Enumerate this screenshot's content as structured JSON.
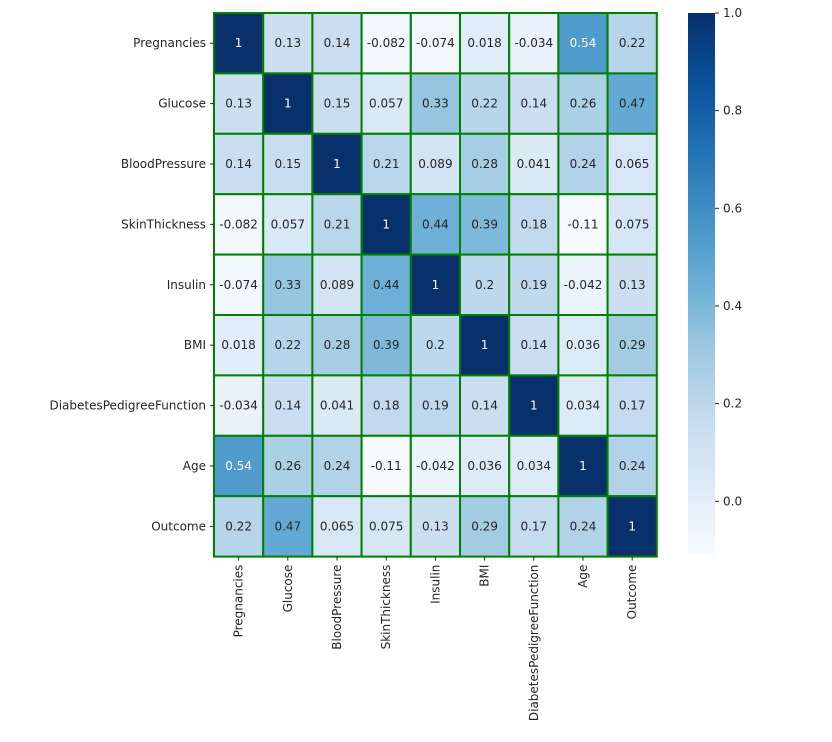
{
  "chart_data": {
    "type": "heatmap",
    "title": "",
    "xlabel": "",
    "ylabel": "",
    "colormap": "Blues",
    "cell_border_color": "#008000",
    "row_labels": [
      "Pregnancies",
      "Glucose",
      "BloodPressure",
      "SkinThickness",
      "Insulin",
      "BMI",
      "DiabetesPedigreeFunction",
      "Age",
      "Outcome"
    ],
    "col_labels": [
      "Pregnancies",
      "Glucose",
      "BloodPressure",
      "SkinThickness",
      "Insulin",
      "BMI",
      "DiabetesPedigreeFunction",
      "Age",
      "Outcome"
    ],
    "values": [
      [
        1,
        0.13,
        0.14,
        -0.082,
        -0.074,
        0.018,
        -0.034,
        0.54,
        0.22
      ],
      [
        0.13,
        1,
        0.15,
        0.057,
        0.33,
        0.22,
        0.14,
        0.26,
        0.47
      ],
      [
        0.14,
        0.15,
        1,
        0.21,
        0.089,
        0.28,
        0.041,
        0.24,
        0.065
      ],
      [
        -0.082,
        0.057,
        0.21,
        1,
        0.44,
        0.39,
        0.18,
        -0.11,
        0.075
      ],
      [
        -0.074,
        0.33,
        0.089,
        0.44,
        1,
        0.2,
        0.19,
        -0.042,
        0.13
      ],
      [
        0.018,
        0.22,
        0.28,
        0.39,
        0.2,
        1,
        0.14,
        0.036,
        0.29
      ],
      [
        -0.034,
        0.14,
        0.041,
        0.18,
        0.19,
        0.14,
        1,
        0.034,
        0.17
      ],
      [
        0.54,
        0.26,
        0.24,
        -0.11,
        -0.042,
        0.036,
        0.034,
        1,
        0.24
      ],
      [
        0.22,
        0.47,
        0.065,
        0.075,
        0.13,
        0.29,
        0.17,
        0.24,
        1
      ]
    ],
    "annotations": [
      [
        "1",
        "0.13",
        "0.14",
        "-0.082",
        "-0.074",
        "0.018",
        "-0.034",
        "0.54",
        "0.22"
      ],
      [
        "0.13",
        "1",
        "0.15",
        "0.057",
        "0.33",
        "0.22",
        "0.14",
        "0.26",
        "0.47"
      ],
      [
        "0.14",
        "0.15",
        "1",
        "0.21",
        "0.089",
        "0.28",
        "0.041",
        "0.24",
        "0.065"
      ],
      [
        "-0.082",
        "0.057",
        "0.21",
        "1",
        "0.44",
        "0.39",
        "0.18",
        "-0.11",
        "0.075"
      ],
      [
        "-0.074",
        "0.33",
        "0.089",
        "0.44",
        "1",
        "0.2",
        "0.19",
        "-0.042",
        "0.13"
      ],
      [
        "0.018",
        "0.22",
        "0.28",
        "0.39",
        "0.2",
        "1",
        "0.14",
        "0.036",
        "0.29"
      ],
      [
        "-0.034",
        "0.14",
        "0.041",
        "0.18",
        "0.19",
        "0.14",
        "1",
        "0.034",
        "0.17"
      ],
      [
        "0.54",
        "0.26",
        "0.24",
        "-0.11",
        "-0.042",
        "0.036",
        "0.034",
        "1",
        "0.24"
      ],
      [
        "0.22",
        "0.47",
        "0.065",
        "0.075",
        "0.13",
        "0.29",
        "0.17",
        "0.24",
        "1"
      ]
    ],
    "colorbar": {
      "vmin": -0.11,
      "vmax": 1.0,
      "ticks": [
        0.0,
        0.2,
        0.4,
        0.6,
        0.8,
        1.0
      ],
      "tick_labels": [
        "0.0",
        "0.2",
        "0.4",
        "0.6",
        "0.8",
        "1.0"
      ]
    },
    "grid": false,
    "legend": "colorbar-right"
  }
}
